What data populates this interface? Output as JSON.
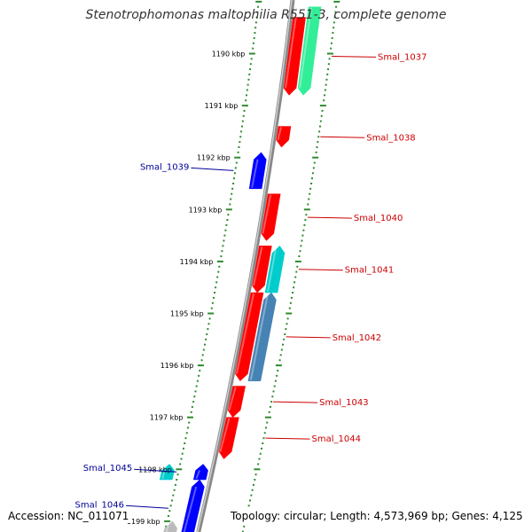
{
  "title": "Stenotrophomonas maltophilia R551-3, complete genome",
  "footer": {
    "accession": "Accession: NC_011071",
    "topology": "Topology: circular; Length: 4,573,969 bp; Genes: 4,125"
  },
  "colors": {
    "background": "#ffffff",
    "backbone": "#888888",
    "tick": "#2e8b2e",
    "forward_gene": "#ff0000",
    "reverse_gene": "#0000ff",
    "forward_label": "#cc0000",
    "reverse_label": "#000099",
    "cds_green": "#33ee99",
    "cds_cyan": "#00cccc",
    "cds_steelblue": "#4682b4",
    "cds_gray": "#bbbbbb"
  },
  "chart_data": {
    "type": "linear-genome-map",
    "units": "kbp",
    "kbp_ticks": [
      1190,
      1191,
      1192,
      1193,
      1194,
      1195,
      1196,
      1197,
      1198,
      1199
    ],
    "tick_labels": [
      "1190 kbp",
      "1191 kbp",
      "1192 kbp",
      "1193 kbp",
      "1194 kbp",
      "1195 kbp",
      "1196 kbp",
      "1197 kbp",
      "1198 kbp",
      "1199 kbp"
    ],
    "genes": [
      {
        "label": "Smal_1037",
        "strand": "+",
        "start_kbp": 1189.3,
        "end_kbp": 1190.8
      },
      {
        "label": "Smal_1038",
        "strand": "+",
        "start_kbp": 1191.4,
        "end_kbp": 1191.8
      },
      {
        "label": "Smal_1039",
        "strand": "-",
        "start_kbp": 1191.9,
        "end_kbp": 1192.6
      },
      {
        "label": "Smal_1040",
        "strand": "+",
        "start_kbp": 1192.7,
        "end_kbp": 1193.6
      },
      {
        "label": "Smal_1041",
        "strand": "+",
        "start_kbp": 1193.7,
        "end_kbp": 1194.6
      },
      {
        "label": "Smal_1042",
        "strand": "+",
        "start_kbp": 1194.6,
        "end_kbp": 1196.3
      },
      {
        "label": "Smal_1043",
        "strand": "+",
        "start_kbp": 1196.4,
        "end_kbp": 1197.0
      },
      {
        "label": "Smal_1044",
        "strand": "+",
        "start_kbp": 1197.0,
        "end_kbp": 1197.8
      },
      {
        "label": "Smal_1045",
        "strand": "-",
        "start_kbp": 1197.9,
        "end_kbp": 1198.2
      },
      {
        "label": "Smal_1046",
        "strand": "-",
        "start_kbp": 1198.2,
        "end_kbp": 1199.3
      }
    ],
    "cds_tracks": [
      {
        "color": "cds_green",
        "start_kbp": 1189.1,
        "end_kbp": 1190.8
      },
      {
        "color": "cds_cyan",
        "start_kbp": 1193.7,
        "end_kbp": 1194.6
      },
      {
        "color": "cds_steelblue",
        "start_kbp": 1194.6,
        "end_kbp": 1196.3
      },
      {
        "color": "cds_cyan",
        "start_kbp": 1197.9,
        "end_kbp": 1198.2
      },
      {
        "color": "cds_gray",
        "start_kbp": 1199.0,
        "end_kbp": 1199.4
      }
    ]
  }
}
